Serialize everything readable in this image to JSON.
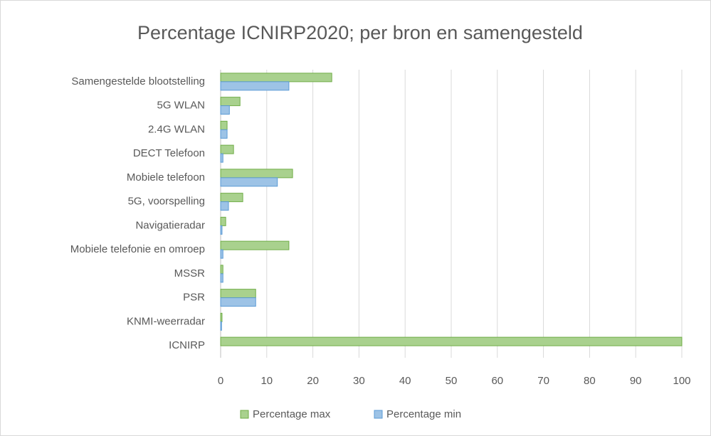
{
  "chart_data": {
    "type": "bar",
    "orientation": "horizontal",
    "title": "Percentage ICNIRP2020; per bron en samengesteld",
    "categories": [
      "Samengestelde blootstelling",
      "5G WLAN",
      "2.4G WLAN",
      "DECT Telefoon",
      "Mobiele telefoon",
      "5G, voorspelling",
      "Navigatieradar",
      "Mobiele telefonie en omroep",
      "MSSR",
      "PSR",
      "KNMI-weerradar",
      "ICNIRP"
    ],
    "series": [
      {
        "name": "Percentage max",
        "color": "#a9d18e",
        "edge": "#70ad47",
        "values": [
          24.1,
          4.2,
          1.4,
          2.8,
          15.6,
          4.8,
          1.1,
          14.8,
          0.5,
          7.6,
          0.3,
          100
        ]
      },
      {
        "name": "Percentage min",
        "color": "#9dc3e6",
        "edge": "#5b9bd5",
        "values": [
          14.8,
          1.9,
          1.4,
          0.5,
          12.3,
          1.7,
          0.3,
          0.5,
          0.5,
          7.6,
          0.2,
          null
        ]
      }
    ],
    "xlim": [
      0,
      100
    ],
    "xticks": [
      0,
      10,
      20,
      30,
      40,
      50,
      60,
      70,
      80,
      90,
      100
    ],
    "grid": true,
    "legend": "bottom"
  }
}
